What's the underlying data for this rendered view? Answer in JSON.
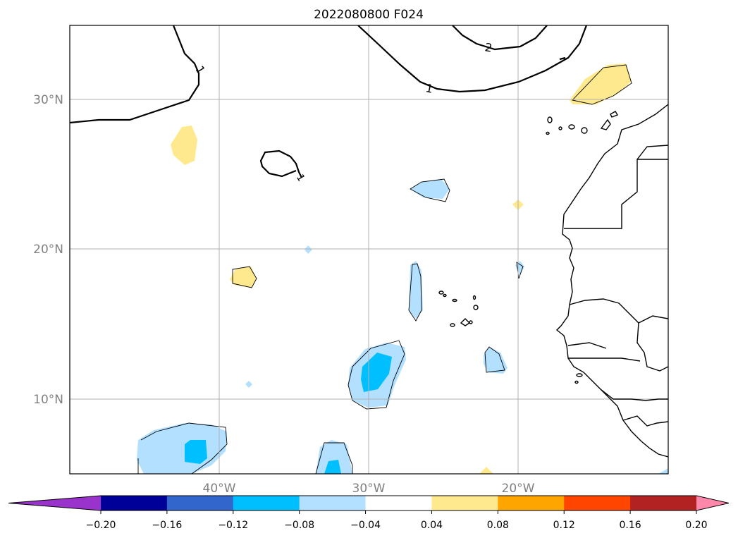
{
  "title": "2022080800 F024",
  "axes": {
    "lon_ticks": [
      "40°W",
      "30°W",
      "20°W"
    ],
    "lat_ticks": [
      "30°N",
      "20°N",
      "10°N"
    ]
  },
  "contour_labels": [
    "1",
    "2",
    "1",
    "1"
  ],
  "colorbar": {
    "ticks": [
      "−0.20",
      "−0.16",
      "−0.12",
      "−0.08",
      "−0.04",
      "0.04",
      "0.08",
      "0.12",
      "0.16",
      "0.20"
    ],
    "colors": [
      "#9933cc",
      "#000099",
      "#3366cc",
      "#00bfff",
      "#b3e0ff",
      "#ffffff",
      "#ffe98f",
      "#ffa500",
      "#ff4500",
      "#b22222",
      "#ff88aa"
    ],
    "extend": "both"
  },
  "colors": {
    "positive_light": "#ffe98f",
    "negative_light": "#b3e0ff",
    "negative_mid": "#00bfff",
    "grid": "#b0b0b0"
  }
}
